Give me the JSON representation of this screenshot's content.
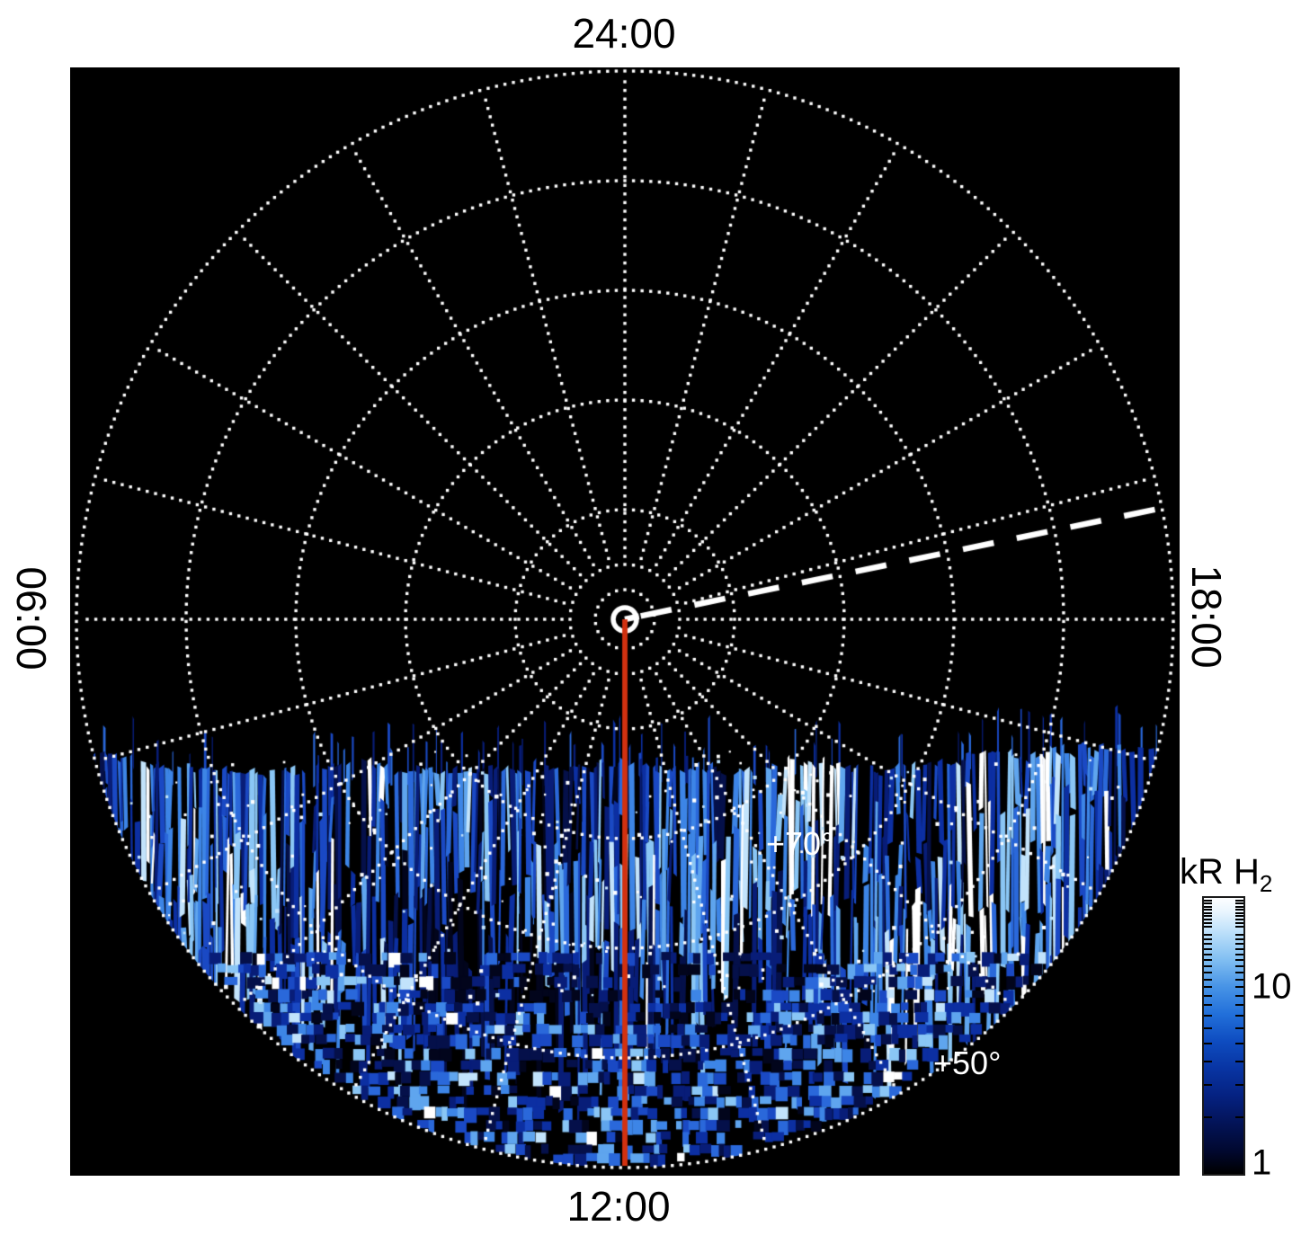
{
  "figure": {
    "description": "Polar projection map of auroral H2 emission brightness versus local time (angle) and latitude (radius), north pole at center",
    "time_labels": {
      "top": "24:00",
      "right": "18:00",
      "bottom": "12:00",
      "left": "06:00"
    },
    "latitude_labels": [
      {
        "text": "+70°"
      },
      {
        "text": "+50°"
      }
    ],
    "colors": {
      "page_background": "#ffffff",
      "plot_background": "#000000",
      "grid": "#ffffff",
      "red_meridian_line": "#d23110",
      "dashed_line": "#ffffff",
      "aurora_palette": [
        "#02051c",
        "#05104a",
        "#081d78",
        "#0c2fa2",
        "#1a49c4",
        "#2a68da",
        "#3d85e6",
        "#5fa5ee",
        "#8ac6f5",
        "#c2e3fb",
        "#ffffff"
      ]
    },
    "seed": 7
  },
  "colorbar": {
    "title_main": "kR H",
    "title_sub": "2",
    "scale": "log",
    "min": 1,
    "max": 30,
    "major_ticks": [
      {
        "value": 10,
        "label": "10"
      },
      {
        "value": 1,
        "label": "1"
      }
    ],
    "minor_ticks": [
      2,
      3,
      4,
      5,
      6,
      7,
      8,
      9,
      11,
      12,
      13,
      14,
      15,
      16,
      17,
      18,
      19,
      21,
      22,
      23,
      24,
      25,
      26,
      27,
      28,
      29
    ],
    "gradient_stops": [
      {
        "f": 0.0,
        "c": "#fdfeff"
      },
      {
        "f": 0.05,
        "c": "#e9f5fe"
      },
      {
        "f": 0.12,
        "c": "#bfe1fa"
      },
      {
        "f": 0.22,
        "c": "#83c0f2"
      },
      {
        "f": 0.32,
        "c": "#4894e6"
      },
      {
        "f": 0.42,
        "c": "#2270da"
      },
      {
        "f": 0.52,
        "c": "#0e4cc0"
      },
      {
        "f": 0.62,
        "c": "#0834a2"
      },
      {
        "f": 0.72,
        "c": "#052180"
      },
      {
        "f": 0.82,
        "c": "#031356"
      },
      {
        "f": 0.92,
        "c": "#01082e"
      },
      {
        "f": 1.0,
        "c": "#000000"
      }
    ]
  },
  "chart_data": {
    "type": "heatmap",
    "projection": "polar (north pole at center)",
    "angular_axis": {
      "coordinate": "local time",
      "labels": [
        "24:00",
        "18:00",
        "12:00",
        "06:00"
      ],
      "orientation": "24:00 at top, 18:00 at right, 12:00 at bottom, 06:00 at left",
      "gridline_spacing_hours": 1
    },
    "radial_axis": {
      "coordinate": "latitude (degrees)",
      "pole_at_center": "+90",
      "gridline_spacing_deg": 10,
      "labeled_circles": [
        "+70°",
        "+50°"
      ]
    },
    "value_axis": {
      "label": "kR H2",
      "scale": "log",
      "range": [
        1,
        30
      ],
      "labeled_ticks": [
        1,
        10
      ]
    },
    "features": [
      {
        "name": "emission_region",
        "description": "Noisy blue-to-white H2 emission fills the dayside (lower) half of the disk, roughly 06:00 through 12:00 to 18:00 local time, equatorward of about +77° latitude"
      },
      {
        "name": "bright_auroral_arc",
        "description": "Brighter light-blue arc near +70° latitude spanning roughly 08:00-16:00 local time"
      },
      {
        "name": "dark_lane",
        "description": "Darker band just equatorward of the bright arc near +60°-+65° around noon"
      },
      {
        "name": "speckle_zone",
        "description": "Blocky speckled emission (black/blue/white cells) from about +60° down to the +50°/edge around 12:00"
      },
      {
        "name": "red_meridian_line",
        "description": "Solid red line from the pole along the 12:00 meridian to the disk edge"
      },
      {
        "name": "white_dashed_line",
        "description": "White dashed line from the pole toward roughly 18:45 local time (slightly above the 18:00 direction)"
      },
      {
        "name": "pole_ring_marker",
        "description": "Small white ring marker at the pole"
      }
    ]
  }
}
